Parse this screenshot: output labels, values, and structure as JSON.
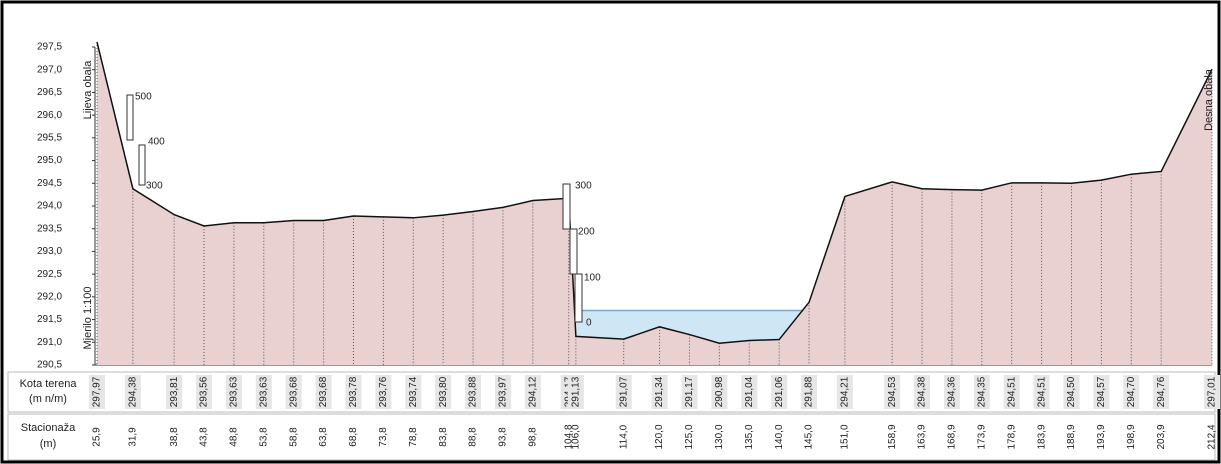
{
  "chart_data": {
    "type": "area",
    "x": [
      25.9,
      31.9,
      38.8,
      43.8,
      48.8,
      53.8,
      58.8,
      63.8,
      68.8,
      73.8,
      78.8,
      83.8,
      88.8,
      93.8,
      98.8,
      104.8,
      106.0,
      114.0,
      120.0,
      125.0,
      130.0,
      135.0,
      140.0,
      145.0,
      151.0,
      158.9,
      163.9,
      168.9,
      173.9,
      178.9,
      183.9,
      188.9,
      193.9,
      198.9,
      203.9,
      212.4
    ],
    "x_labels": [
      "25,9",
      "31,9",
      "38,8",
      "43,8",
      "48,8",
      "53,8",
      "58,8",
      "63,8",
      "68,8",
      "73,8",
      "78,8",
      "83,8",
      "88,8",
      "93,8",
      "98,8",
      "104,8",
      "106,0",
      "114,0",
      "120,0",
      "125,0",
      "130,0",
      "135,0",
      "140,0",
      "145,0",
      "151,0",
      "158,9",
      "163,9",
      "168,9",
      "173,9",
      "178,9",
      "183,9",
      "188,9",
      "193,9",
      "198,9",
      "203,9",
      "212,4"
    ],
    "values": [
      297.97,
      294.38,
      293.81,
      293.56,
      293.63,
      293.63,
      293.68,
      293.68,
      293.78,
      293.76,
      293.74,
      293.8,
      293.88,
      293.97,
      294.12,
      294.17,
      291.13,
      291.07,
      291.34,
      291.17,
      290.98,
      291.04,
      291.06,
      291.88,
      294.21,
      294.53,
      294.38,
      294.36,
      294.35,
      294.51,
      294.51,
      294.5,
      294.57,
      294.7,
      294.76,
      297.01
    ],
    "value_labels": [
      "297,97",
      "294,38",
      "293,81",
      "293,56",
      "293,63",
      "293,63",
      "293,68",
      "293,68",
      "293,78",
      "293,76",
      "293,74",
      "293,80",
      "293,88",
      "293,97",
      "294,12",
      "294,17",
      "291,13",
      "291,07",
      "291,34",
      "291,17",
      "290,98",
      "291,04",
      "291,06",
      "291,88",
      "294,21",
      "294,53",
      "294,38",
      "294,36",
      "294,35",
      "294,51",
      "294,51",
      "294,50",
      "294,57",
      "294,70",
      "294,76",
      "297,01"
    ],
    "color": "#e9d0d1",
    "water_level": 291.7,
    "water_color": "#cfe6f5",
    "ylim": [
      290.5,
      297.5
    ],
    "yticks": [
      {
        "value": 290.5,
        "label": "290,5"
      },
      {
        "value": 291.0,
        "label": "291,0"
      },
      {
        "value": 291.5,
        "label": "291,5"
      },
      {
        "value": 292.0,
        "label": "292,0"
      },
      {
        "value": 292.5,
        "label": "292,5"
      },
      {
        "value": 293.0,
        "label": "293,0"
      },
      {
        "value": 293.5,
        "label": "293,5"
      },
      {
        "value": 294.0,
        "label": "294,0"
      },
      {
        "value": 294.5,
        "label": "294,5"
      },
      {
        "value": 295.0,
        "label": "295,0"
      },
      {
        "value": 295.5,
        "label": "295,5"
      },
      {
        "value": 296.0,
        "label": "296,0"
      },
      {
        "value": 296.5,
        "label": "296,5"
      },
      {
        "value": 297.0,
        "label": "297,0"
      },
      {
        "value": 297.5,
        "label": "297,5"
      }
    ],
    "left_bank": "Lijeva obala",
    "right_bank": "Desna obala",
    "scale": "Mjerilo 1:100",
    "row_elevation": [
      "Kota terena",
      "(m n/m)"
    ],
    "row_station": [
      "Stacionaža",
      "(m)"
    ],
    "gauge_left": [
      "500",
      "400",
      "300"
    ],
    "gauge_mid": [
      "300",
      "200",
      "100",
      "0"
    ]
  }
}
